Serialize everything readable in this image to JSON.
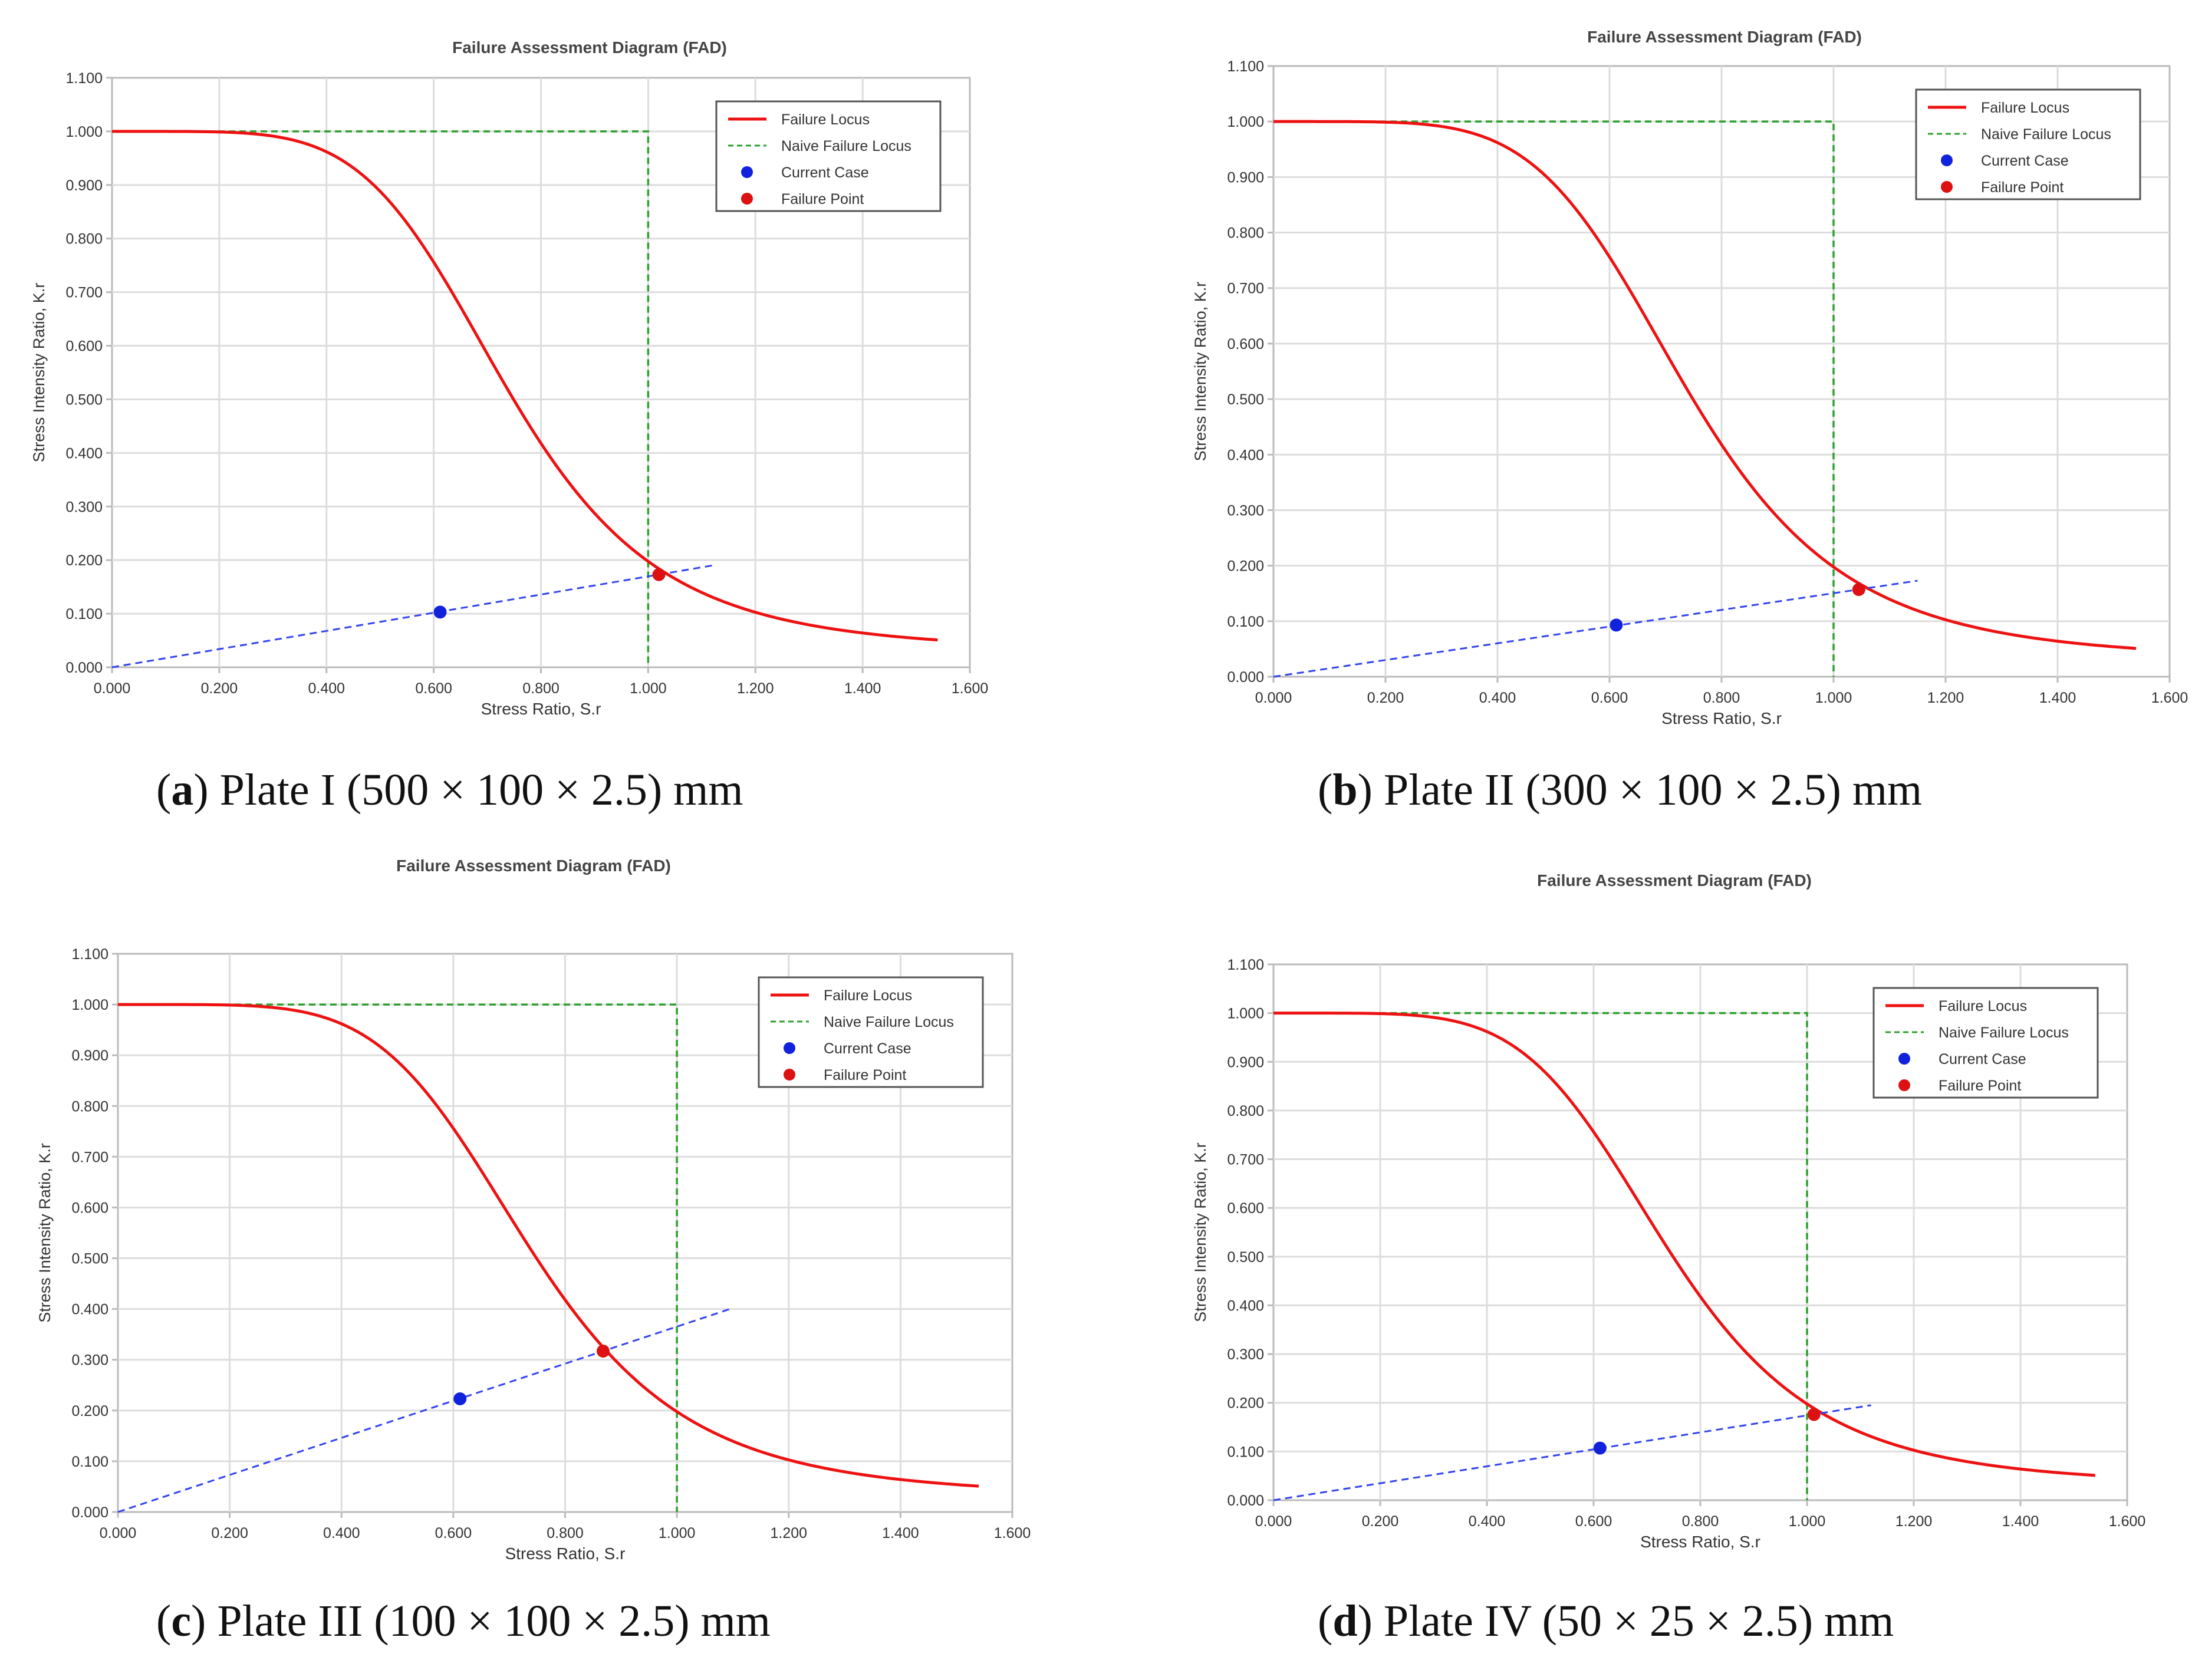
{
  "chart_data": [
    {
      "panel": "a",
      "type": "line",
      "title": "Failure Assessment Diagram (FAD)",
      "xlabel": "Stress Ratio, S.r",
      "ylabel": "Stress Intensity Ratio, K.r",
      "xlim": [
        0,
        1.6
      ],
      "ylim": [
        0,
        1.1
      ],
      "xticks": [
        "0.000",
        "0.200",
        "0.400",
        "0.600",
        "0.800",
        "1.000",
        "1.200",
        "1.400",
        "1.600"
      ],
      "yticks": [
        "0.000",
        "0.100",
        "0.200",
        "0.300",
        "0.400",
        "0.500",
        "0.600",
        "0.700",
        "0.800",
        "0.900",
        "1.000",
        "1.100"
      ],
      "grid": true,
      "legend_position": "top-right",
      "legend": [
        "Failure Locus",
        "Naive Failure Locus",
        "Current Case",
        "Failure Point"
      ],
      "failure_locus_sr_max": 1.54,
      "naive_failure_locus": {
        "x": [
          0,
          1,
          1
        ],
        "y": [
          1,
          1,
          0
        ]
      },
      "load_line": {
        "x": [
          0,
          1.12
        ],
        "y": [
          0,
          0.19
        ]
      },
      "current_case": {
        "x": 0.612,
        "y": 0.103
      },
      "failure_point": {
        "x": 1.02,
        "y": 0.173
      },
      "caption_letter": "a",
      "caption_text": " Plate I (500 × 100 × 2.5) mm"
    },
    {
      "panel": "b",
      "type": "line",
      "title": "Failure Assessment Diagram (FAD)",
      "xlabel": "Stress Ratio, S.r",
      "ylabel": "Stress Intensity Ratio, K.r",
      "xlim": [
        0,
        1.6
      ],
      "ylim": [
        0,
        1.1
      ],
      "xticks": [
        "0.000",
        "0.200",
        "0.400",
        "0.600",
        "0.800",
        "1.000",
        "1.200",
        "1.400",
        "1.600"
      ],
      "yticks": [
        "0.000",
        "0.100",
        "0.200",
        "0.300",
        "0.400",
        "0.500",
        "0.600",
        "0.700",
        "0.800",
        "0.900",
        "1.000",
        "1.100"
      ],
      "grid": true,
      "legend_position": "top-right",
      "legend": [
        "Failure Locus",
        "Naive Failure Locus",
        "Current Case",
        "Failure Point"
      ],
      "failure_locus_sr_max": 1.54,
      "naive_failure_locus": {
        "x": [
          0,
          1,
          1
        ],
        "y": [
          1,
          1,
          0
        ]
      },
      "load_line": {
        "x": [
          0,
          1.15
        ],
        "y": [
          0,
          0.173
        ]
      },
      "current_case": {
        "x": 0.612,
        "y": 0.093
      },
      "failure_point": {
        "x": 1.045,
        "y": 0.157
      },
      "caption_letter": "b",
      "caption_text": " Plate II (300 × 100 × 2.5) mm"
    },
    {
      "panel": "c",
      "type": "line",
      "title": "Failure Assessment Diagram (FAD)",
      "xlabel": "Stress Ratio, S.r",
      "ylabel": "Stress Intensity Ratio, K.r",
      "xlim": [
        0,
        1.6
      ],
      "ylim": [
        0,
        1.1
      ],
      "xticks": [
        "0.000",
        "0.200",
        "0.400",
        "0.600",
        "0.800",
        "1.000",
        "1.200",
        "1.400",
        "1.600"
      ],
      "yticks": [
        "0.000",
        "0.100",
        "0.200",
        "0.300",
        "0.400",
        "0.500",
        "0.600",
        "0.700",
        "0.800",
        "0.900",
        "1.000",
        "1.100"
      ],
      "grid": true,
      "legend_position": "top-right",
      "legend": [
        "Failure Locus",
        "Naive Failure Locus",
        "Current Case",
        "Failure Point"
      ],
      "failure_locus_sr_max": 1.54,
      "naive_failure_locus": {
        "x": [
          0,
          1,
          1
        ],
        "y": [
          1,
          1,
          0
        ]
      },
      "load_line": {
        "x": [
          0,
          1.095
        ],
        "y": [
          0,
          0.4
        ]
      },
      "current_case": {
        "x": 0.612,
        "y": 0.223
      },
      "failure_point": {
        "x": 0.868,
        "y": 0.317
      },
      "caption_letter": "c",
      "caption_text": " Plate III (100 × 100 × 2.5) mm"
    },
    {
      "panel": "d",
      "type": "line",
      "title": "Failure Assessment Diagram (FAD)",
      "xlabel": "Stress Ratio, S.r",
      "ylabel": "Stress Intensity Ratio, K.r",
      "xlim": [
        0,
        1.6
      ],
      "ylim": [
        0,
        1.1
      ],
      "xticks": [
        "0.000",
        "0.200",
        "0.400",
        "0.600",
        "0.800",
        "1.000",
        "1.200",
        "1.400",
        "1.600"
      ],
      "yticks": [
        "0.000",
        "0.100",
        "0.200",
        "0.300",
        "0.400",
        "0.500",
        "0.600",
        "0.700",
        "0.800",
        "0.900",
        "1.000",
        "1.100"
      ],
      "grid": true,
      "legend_position": "top-right",
      "legend": [
        "Failure Locus",
        "Naive Failure Locus",
        "Current Case",
        "Failure Point"
      ],
      "failure_locus_sr_max": 1.54,
      "naive_failure_locus": {
        "x": [
          0,
          1,
          1
        ],
        "y": [
          1,
          1,
          0
        ]
      },
      "load_line": {
        "x": [
          0,
          1.12
        ],
        "y": [
          0,
          0.195
        ]
      },
      "current_case": {
        "x": 0.612,
        "y": 0.107
      },
      "failure_point": {
        "x": 1.013,
        "y": 0.176
      },
      "caption_letter": "d",
      "caption_text": " Plate IV (50 × 25 × 2.5) mm"
    }
  ],
  "colors": {
    "failure_locus": "#ee1111",
    "naive_locus": "#2ca02c",
    "load_line": "#3344ee",
    "current_case": "#1122dd",
    "failure_point": "#dd1111",
    "grid": "#dddddd",
    "axis": "#bbbbbb",
    "text": "#333333"
  }
}
